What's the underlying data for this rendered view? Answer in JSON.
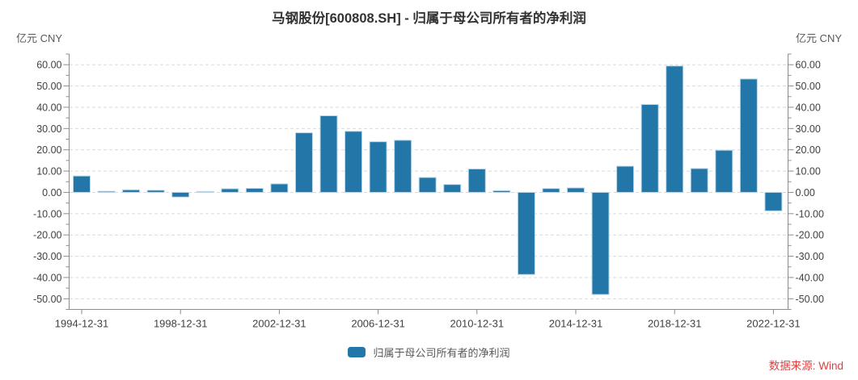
{
  "title": "马钢股份[600808.SH] - 归属于母公司所有者的净利润",
  "unit_label_left": "亿元 CNY",
  "unit_label_right": "亿元 CNY",
  "legend": {
    "label": "归属于母公司所有者的净利润"
  },
  "source": "数据来源: Wind",
  "colors": {
    "bar": "#2277a8",
    "bar_border": "#b9d7e8",
    "grid": "#d9d9d9",
    "axis": "#8c8c8c",
    "tick_text": "#404040",
    "title_text": "#333333",
    "source_red": "#e03e3e"
  },
  "chart_data": {
    "type": "bar",
    "title": "马钢股份[600808.SH] - 归属于母公司所有者的净利润",
    "series_name": "归属于母公司所有者的净利润",
    "ylabel": "亿元 CNY",
    "categories": [
      "1994-12-31",
      "1995-12-31",
      "1996-12-31",
      "1997-12-31",
      "1998-12-31",
      "1999-12-31",
      "2000-12-31",
      "2001-12-31",
      "2002-12-31",
      "2003-12-31",
      "2004-12-31",
      "2005-12-31",
      "2006-12-31",
      "2007-12-31",
      "2008-12-31",
      "2009-12-31",
      "2010-12-31",
      "2011-12-31",
      "2012-12-31",
      "2013-12-31",
      "2014-12-31",
      "2015-12-31",
      "2016-12-31",
      "2017-12-31",
      "2018-12-31",
      "2019-12-31",
      "2020-12-31",
      "2021-12-31",
      "2022-12-31"
    ],
    "values": [
      7.7,
      0.5,
      1.2,
      1.0,
      -2.2,
      0.4,
      1.7,
      1.9,
      4.0,
      28.0,
      36.0,
      28.7,
      23.8,
      24.5,
      7.0,
      3.7,
      11.0,
      0.8,
      -38.6,
      1.8,
      2.1,
      -48.0,
      12.3,
      41.3,
      59.4,
      11.2,
      19.8,
      53.3,
      -8.7
    ],
    "ylim": [
      -55,
      65
    ],
    "y_major_ticks": [
      60,
      50,
      40,
      30,
      20,
      10,
      0,
      -10,
      -20,
      -30,
      -40,
      -50
    ],
    "y_minor_step": 5,
    "y_tick_format_decimals": 2,
    "x_tick_labels": [
      "1994-12-31",
      "1998-12-31",
      "2002-12-31",
      "2006-12-31",
      "2010-12-31",
      "2014-12-31",
      "2018-12-31",
      "2022-12-31"
    ],
    "grid": "horizontal-dashed",
    "legend_position": "bottom"
  }
}
